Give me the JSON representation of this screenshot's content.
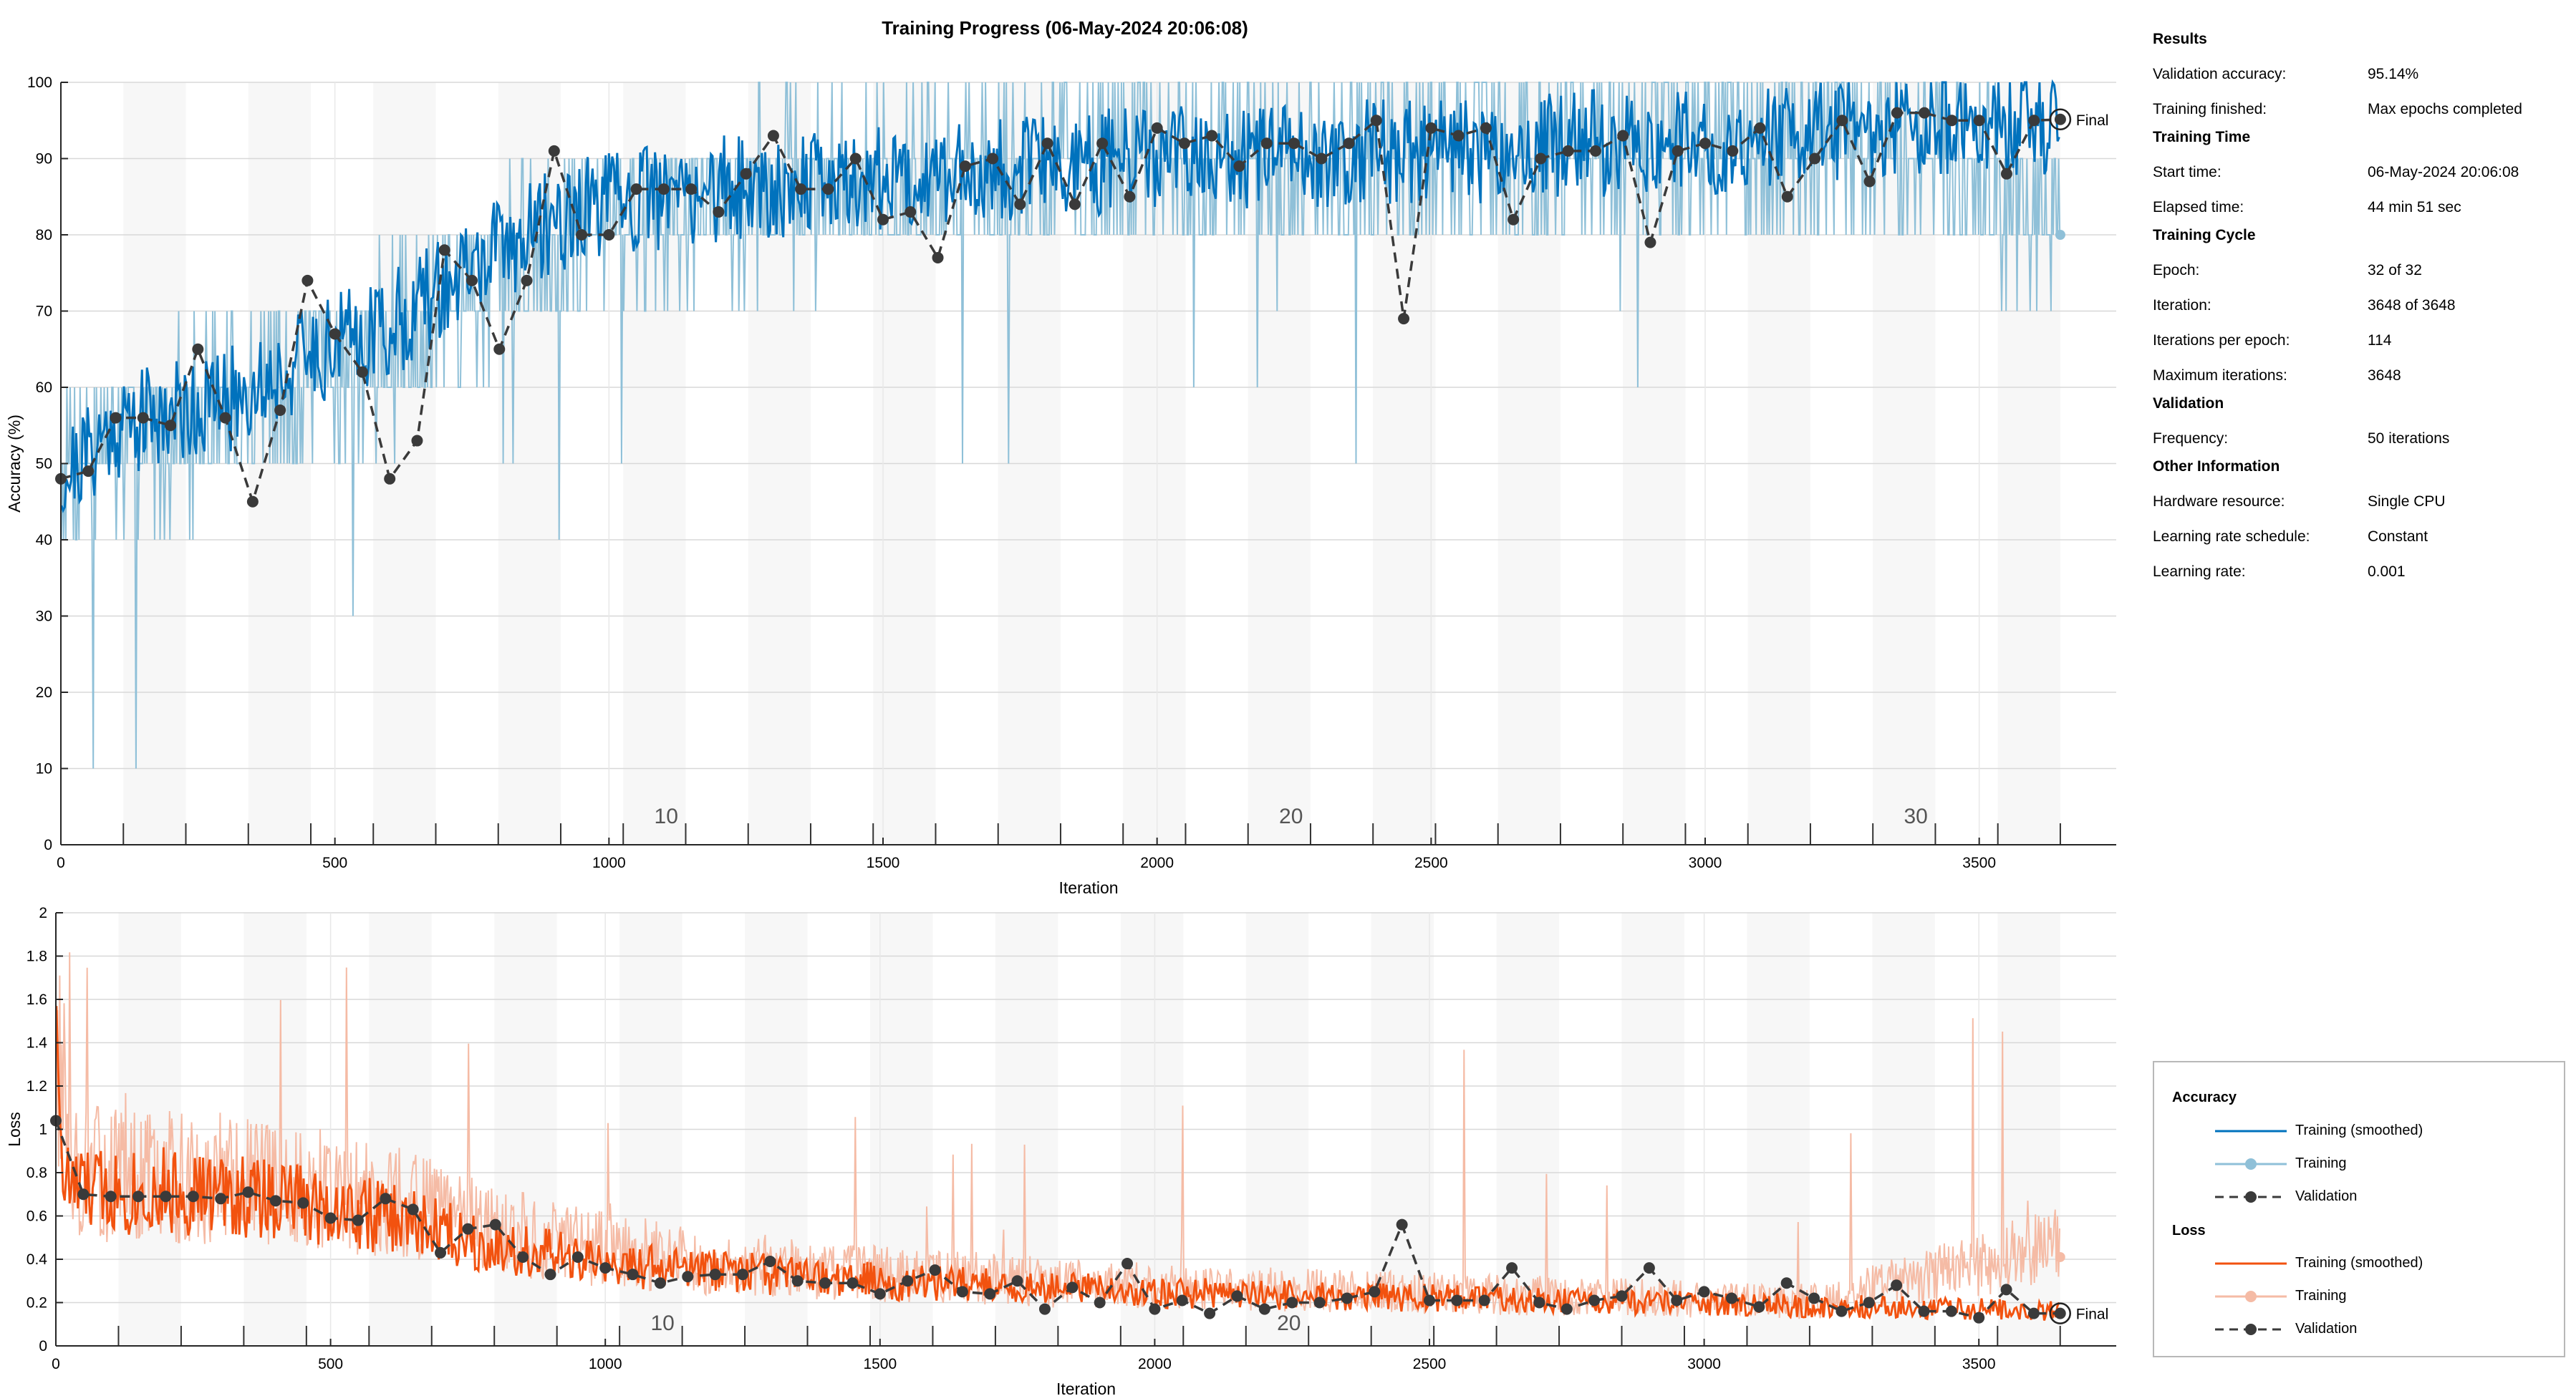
{
  "window": {
    "title": "Training Progress (06-May-2024 20:06:08)"
  },
  "colors": {
    "accuracy_smoothed": "#0072bd",
    "accuracy_raw": "#8fc0d8",
    "loss_smoothed": "#f2520f",
    "loss_raw": "#f5bba5",
    "validation": "#3a3a3a",
    "grid": "#d8d8d8"
  },
  "info": {
    "results_header": "Results",
    "validation_accuracy_label": "Validation accuracy:",
    "validation_accuracy_value": "95.14%",
    "training_finished_label": "Training finished:",
    "training_finished_value": "Max epochs completed",
    "time_header": "Training Time",
    "start_time_label": "Start time:",
    "start_time_value": "06-May-2024 20:06:08",
    "elapsed_label": "Elapsed time:",
    "elapsed_value": "44 min 51 sec",
    "cycle_header": "Training Cycle",
    "epoch_label": "Epoch:",
    "epoch_value": "32 of 32",
    "iteration_label": "Iteration:",
    "iteration_value": "3648 of 3648",
    "ipe_label": "Iterations per epoch:",
    "ipe_value": "114",
    "maxit_label": "Maximum iterations:",
    "maxit_value": "3648",
    "validation_header": "Validation",
    "frequency_label": "Frequency:",
    "frequency_value": "50 iterations",
    "other_header": "Other Information",
    "hardware_label": "Hardware resource:",
    "hardware_value": "Single CPU",
    "lrs_label": "Learning rate schedule:",
    "lrs_value": "Constant",
    "lr_label": "Learning rate:",
    "lr_value": "0.001"
  },
  "legend": {
    "accuracy_header": "Accuracy",
    "loss_header": "Loss",
    "items": [
      "Training (smoothed)",
      "Training",
      "Validation"
    ]
  },
  "chart_data": [
    {
      "type": "line",
      "title": "Training Progress (06-May-2024 20:06:08)",
      "xlabel": "Iteration",
      "ylabel": "Accuracy (%)",
      "xlim": [
        0,
        3750
      ],
      "ylim": [
        0,
        100
      ],
      "xticks": [
        0,
        500,
        1000,
        1500,
        2000,
        2500,
        3000,
        3500
      ],
      "yticks": [
        0,
        10,
        20,
        30,
        40,
        50,
        60,
        70,
        80,
        90,
        100
      ],
      "epoch_labels": [
        {
          "epoch": 10,
          "x": 1026
        },
        {
          "epoch": 20,
          "x": 2166
        },
        {
          "epoch": 30,
          "x": 3306
        }
      ],
      "final_label": "Final",
      "final_training_value": 80,
      "final_validation_value": 95.14,
      "series": [
        {
          "name": "Training (smoothed)",
          "anchors": {
            "x": [
              0,
              100,
              200,
              300,
              400,
              500,
              600,
              700,
              800,
              900,
              1000,
              1200,
              1400,
              1600,
              1800,
              2000,
              2200,
              2400,
              2600,
              2800,
              3000,
              3200,
              3400,
              3648
            ],
            "y": [
              48,
              55,
              57,
              58,
              62,
              66,
              68,
              73,
              78,
              82,
              84,
              86,
              87,
              88,
              89,
              90,
              90,
              91,
              91,
              92,
              92,
              93,
              94,
              95
            ]
          }
        },
        {
          "name": "Training",
          "anchors": {
            "x": [
              0,
              200,
              400,
              600,
              800,
              1000,
              1400,
              1800,
              2200,
              2600,
              3000,
              3400,
              3648
            ],
            "y": [
              50,
              55,
              60,
              65,
              75,
              83,
              86,
              88,
              89,
              90,
              91,
              92,
              80
            ]
          }
        },
        {
          "name": "Validation",
          "x": [
            0,
            50,
            100,
            150,
            200,
            250,
            300,
            350,
            400,
            450,
            500,
            550,
            600,
            650,
            700,
            750,
            800,
            850,
            900,
            950,
            1000,
            1050,
            1100,
            1150,
            1200,
            1250,
            1300,
            1350,
            1400,
            1450,
            1500,
            1550,
            1600,
            1650,
            1700,
            1750,
            1800,
            1850,
            1900,
            1950,
            2000,
            2050,
            2100,
            2150,
            2200,
            2250,
            2300,
            2350,
            2400,
            2450,
            2500,
            2550,
            2600,
            2650,
            2700,
            2750,
            2800,
            2850,
            2900,
            2950,
            3000,
            3050,
            3100,
            3150,
            3200,
            3250,
            3300,
            3350,
            3400,
            3450,
            3500,
            3550,
            3600,
            3648
          ],
          "y": [
            48,
            49,
            56,
            56,
            55,
            65,
            56,
            45,
            57,
            74,
            67,
            62,
            48,
            53,
            78,
            74,
            65,
            74,
            91,
            80,
            80,
            86,
            86,
            86,
            83,
            88,
            93,
            86,
            86,
            90,
            82,
            83,
            77,
            89,
            90,
            84,
            92,
            84,
            92,
            85,
            94,
            92,
            93,
            89,
            92,
            92,
            90,
            92,
            95,
            69,
            94,
            93,
            94,
            82,
            90,
            91,
            91,
            93,
            79,
            91,
            92,
            91,
            94,
            85,
            90,
            95,
            87,
            96,
            96,
            95,
            95,
            88,
            95,
            95.14
          ]
        }
      ]
    },
    {
      "type": "line",
      "xlabel": "Iteration",
      "ylabel": "Loss",
      "xlim": [
        0,
        3750
      ],
      "ylim": [
        0,
        2
      ],
      "xticks": [
        0,
        500,
        1000,
        1500,
        2000,
        2500,
        3000,
        3500
      ],
      "yticks": [
        0,
        0.2,
        0.4,
        0.6,
        0.8,
        1,
        1.2,
        1.4,
        1.6,
        1.8,
        2
      ],
      "epoch_labels": [
        {
          "epoch": 10,
          "x": 1026
        },
        {
          "epoch": 20,
          "x": 2166
        }
      ],
      "final_label": "Final",
      "final_training_value": 0.41,
      "final_validation_value": 0.15,
      "series": [
        {
          "name": "Training (smoothed)",
          "anchors": {
            "x": [
              0,
              10,
              40,
              100,
              300,
              450,
              550,
              650,
              800,
              1000,
              1200,
              1400,
              1600,
              1800,
              2000,
              2200,
              2400,
              2600,
              2800,
              3000,
              3200,
              3400,
              3648
            ],
            "y": [
              1.9,
              0.75,
              0.7,
              0.7,
              0.68,
              0.65,
              0.6,
              0.55,
              0.45,
              0.36,
              0.34,
              0.3,
              0.28,
              0.26,
              0.24,
              0.23,
              0.22,
              0.21,
              0.2,
              0.19,
              0.18,
              0.17,
              0.16
            ]
          }
        },
        {
          "name": "Training",
          "anchors": {
            "x": [
              0,
              40,
              300,
              600,
              900,
              1200,
              1600,
              2000,
              2400,
              2800,
              3200,
              3648
            ],
            "y": [
              1.2,
              0.7,
              0.68,
              0.6,
              0.42,
              0.34,
              0.28,
              0.24,
              0.22,
              0.2,
              0.18,
              0.41
            ]
          }
        },
        {
          "name": "Validation",
          "x": [
            0,
            50,
            100,
            150,
            200,
            250,
            300,
            350,
            400,
            450,
            500,
            550,
            600,
            650,
            700,
            750,
            800,
            850,
            900,
            950,
            1000,
            1050,
            1100,
            1150,
            1200,
            1250,
            1300,
            1350,
            1400,
            1450,
            1500,
            1550,
            1600,
            1650,
            1700,
            1750,
            1800,
            1850,
            1900,
            1950,
            2000,
            2050,
            2100,
            2150,
            2200,
            2250,
            2300,
            2350,
            2400,
            2450,
            2500,
            2550,
            2600,
            2650,
            2700,
            2750,
            2800,
            2850,
            2900,
            2950,
            3000,
            3050,
            3100,
            3150,
            3200,
            3250,
            3300,
            3350,
            3400,
            3450,
            3500,
            3550,
            3600,
            3648
          ],
          "y": [
            1.04,
            0.7,
            0.69,
            0.69,
            0.69,
            0.69,
            0.68,
            0.71,
            0.67,
            0.66,
            0.59,
            0.58,
            0.68,
            0.63,
            0.43,
            0.54,
            0.56,
            0.41,
            0.33,
            0.41,
            0.36,
            0.33,
            0.29,
            0.32,
            0.33,
            0.33,
            0.39,
            0.3,
            0.29,
            0.29,
            0.24,
            0.3,
            0.35,
            0.25,
            0.24,
            0.3,
            0.17,
            0.27,
            0.2,
            0.38,
            0.17,
            0.21,
            0.15,
            0.23,
            0.17,
            0.2,
            0.2,
            0.22,
            0.25,
            0.56,
            0.21,
            0.21,
            0.21,
            0.36,
            0.2,
            0.17,
            0.21,
            0.23,
            0.36,
            0.21,
            0.25,
            0.22,
            0.18,
            0.29,
            0.22,
            0.16,
            0.2,
            0.28,
            0.16,
            0.16,
            0.13,
            0.26,
            0.15,
            0.15
          ]
        }
      ]
    }
  ]
}
